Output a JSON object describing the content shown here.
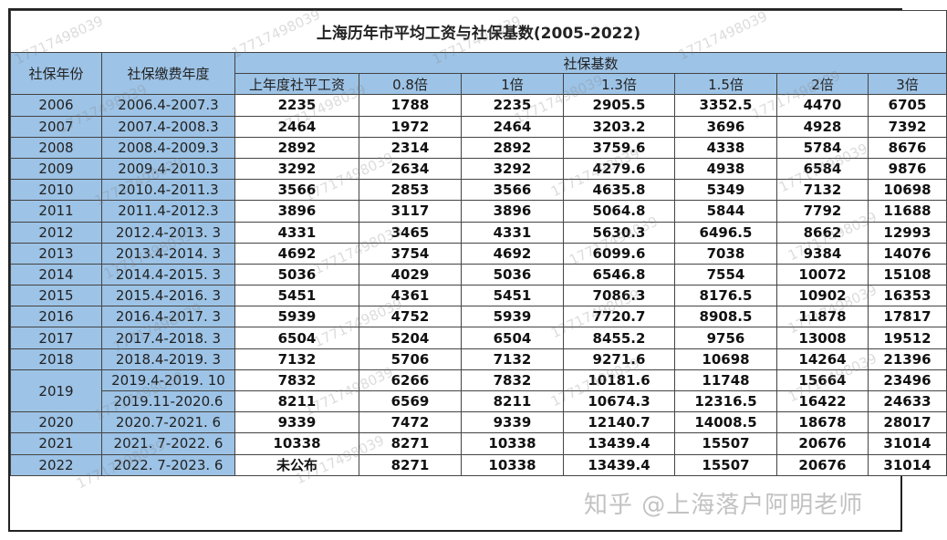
{
  "title": "上海历年市平均工资与社保基数(2005-2022)",
  "headers": {
    "year": "社保年份",
    "period": "社保缴费年度",
    "base_group": "社保基数",
    "cols": [
      "上年度社平工资",
      "0.8倍",
      "1倍",
      "1.3倍",
      "1.5倍",
      "2倍",
      "3倍"
    ]
  },
  "rows": [
    {
      "year": "2006",
      "periods": [
        {
          "period": "2006.4-2007.3",
          "values": [
            "2235",
            "1788",
            "2235",
            "2905.5",
            "3352.5",
            "4470",
            "6705"
          ]
        }
      ]
    },
    {
      "year": "2007",
      "periods": [
        {
          "period": "2007.4-2008.3",
          "values": [
            "2464",
            "1972",
            "2464",
            "3203.2",
            "3696",
            "4928",
            "7392"
          ]
        }
      ]
    },
    {
      "year": "2008",
      "periods": [
        {
          "period": "2008.4-2009.3",
          "values": [
            "2892",
            "2314",
            "2892",
            "3759.6",
            "4338",
            "5784",
            "8676"
          ]
        }
      ]
    },
    {
      "year": "2009",
      "periods": [
        {
          "period": "2009.4-2010.3",
          "values": [
            "3292",
            "2634",
            "3292",
            "4279.6",
            "4938",
            "6584",
            "9876"
          ]
        }
      ]
    },
    {
      "year": "2010",
      "periods": [
        {
          "period": "2010.4-2011.3",
          "values": [
            "3566",
            "2853",
            "3566",
            "4635.8",
            "5349",
            "7132",
            "10698"
          ]
        }
      ]
    },
    {
      "year": "2011",
      "periods": [
        {
          "period": "2011.4-2012.3",
          "values": [
            "3896",
            "3117",
            "3896",
            "5064.8",
            "5844",
            "7792",
            "11688"
          ]
        }
      ]
    },
    {
      "year": "2012",
      "periods": [
        {
          "period": "2012.4-2013. 3",
          "values": [
            "4331",
            "3465",
            "4331",
            "5630.3",
            "6496.5",
            "8662",
            "12993"
          ]
        }
      ]
    },
    {
      "year": "2013",
      "periods": [
        {
          "period": "2013.4-2014. 3",
          "values": [
            "4692",
            "3754",
            "4692",
            "6099.6",
            "7038",
            "9384",
            "14076"
          ]
        }
      ]
    },
    {
      "year": "2014",
      "periods": [
        {
          "period": "2014.4-2015. 3",
          "values": [
            "5036",
            "4029",
            "5036",
            "6546.8",
            "7554",
            "10072",
            "15108"
          ]
        }
      ]
    },
    {
      "year": "2015",
      "periods": [
        {
          "period": "2015.4-2016. 3",
          "values": [
            "5451",
            "4361",
            "5451",
            "7086.3",
            "8176.5",
            "10902",
            "16353"
          ]
        }
      ]
    },
    {
      "year": "2016",
      "periods": [
        {
          "period": "2016.4-2017. 3",
          "values": [
            "5939",
            "4752",
            "5939",
            "7720.7",
            "8908.5",
            "11878",
            "17817"
          ]
        }
      ]
    },
    {
      "year": "2017",
      "periods": [
        {
          "period": "2017.4-2018. 3",
          "values": [
            "6504",
            "5204",
            "6504",
            "8455.2",
            "9756",
            "13008",
            "19512"
          ]
        }
      ]
    },
    {
      "year": "2018",
      "periods": [
        {
          "period": "2018.4-2019. 3",
          "values": [
            "7132",
            "5706",
            "7132",
            "9271.6",
            "10698",
            "14264",
            "21396"
          ]
        }
      ]
    },
    {
      "year": "2019",
      "periods": [
        {
          "period": "2019.4-2019. 10",
          "values": [
            "7832",
            "6266",
            "7832",
            "10181.6",
            "11748",
            "15664",
            "23496"
          ]
        },
        {
          "period": "2019.11-2020.6",
          "values": [
            "8211",
            "6569",
            "8211",
            "10674.3",
            "12316.5",
            "16422",
            "24633"
          ]
        }
      ]
    },
    {
      "year": "2020",
      "periods": [
        {
          "period": "2020.7-2021. 6",
          "values": [
            "9339",
            "7472",
            "9339",
            "12140.7",
            "14008.5",
            "18678",
            "28017"
          ]
        }
      ]
    },
    {
      "year": "2021",
      "periods": [
        {
          "period": "2021. 7-2022. 6",
          "values": [
            "10338",
            "8271",
            "10338",
            "13439.4",
            "15507",
            "20676",
            "31014"
          ]
        }
      ]
    },
    {
      "year": "2022",
      "periods": [
        {
          "period": "2022. 7-2023. 6",
          "values": [
            "未公布",
            "8271",
            "10338",
            "13439.4",
            "15507",
            "20676",
            "31014"
          ]
        }
      ]
    }
  ],
  "watermark_phone": "17717498039",
  "watermark_bottom": "知乎 @上海落户阿明老师"
}
